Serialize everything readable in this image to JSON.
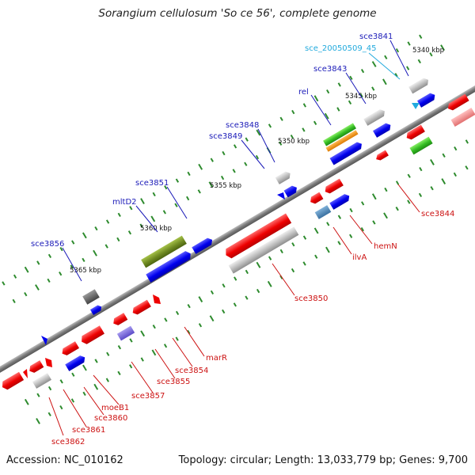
{
  "title": "Sorangium cellulosum 'So ce 56', complete genome",
  "footer": {
    "accession": "Accession: NC_010162",
    "summary": "Topology: circular; Length: 13,033,779 bp; Genes: 9,700"
  },
  "colors": {
    "label_blue": "#1a1ab8",
    "label_red": "#cc1111",
    "label_cyan": "#22aadd",
    "backbone": "#888888",
    "tick": "#2e8b2e"
  },
  "positions": [
    "5340 kbp",
    "5345 kbp",
    "5350 kbp",
    "5355 kbp",
    "5360 kbp",
    "5365 kbp"
  ],
  "genes": {
    "sce3841": "sce3841",
    "sce_20050509_45": "sce_20050509_45",
    "sce3843": "sce3843",
    "rel": "rel",
    "sce3848": "sce3848",
    "sce3849": "sce3849",
    "sce3851": "sce3851",
    "mltD2": "mltD2",
    "sce3856": "sce3856",
    "sce3844": "sce3844",
    "hemN": "hemN",
    "ilvA": "ilvA",
    "sce3850": "sce3850",
    "marR": "marR",
    "sce3854": "sce3854",
    "sce3855": "sce3855",
    "sce3857": "sce3857",
    "moeB1": "moeB1",
    "sce3860": "sce3860",
    "sce3861": "sce3861",
    "sce3862": "sce3862"
  }
}
